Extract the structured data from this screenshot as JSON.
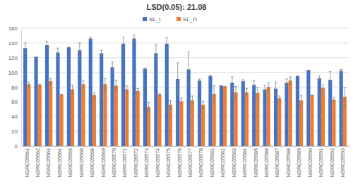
{
  "chart_data": {
    "type": "bar",
    "title": "LSD(0.05): 21.08",
    "categories": [
      "NGRC05561",
      "NGRC05562",
      "NGRC05563",
      "NGRC05564",
      "NGRC05565",
      "NGRC05566",
      "NGRC05568",
      "NGRC05569",
      "NGRC05570",
      "NGRC05571",
      "NGRC05572",
      "NGRC05573",
      "NGRC05574",
      "NGRC05575",
      "NGRC05576",
      "NGRC05577",
      "NGRC05578",
      "NGRC05581",
      "NGRC05582",
      "NGRC05583",
      "NGRC05584",
      "NGRC05585",
      "NGRC05586",
      "NGRC05587",
      "NGRC05588",
      "NGRC05589",
      "NGRC05590",
      "NGRC05591",
      "NGRC05592",
      "NGRC05593"
    ],
    "series": [
      {
        "name": "SL_I",
        "color": "#4472c4",
        "values": [
          133,
          121,
          137,
          127,
          134,
          130,
          146,
          126,
          107,
          139,
          146,
          105,
          126,
          139,
          91,
          104,
          89,
          95,
          82,
          86,
          88,
          83,
          77,
          78,
          86,
          95,
          103,
          92,
          90,
          102
        ],
        "errors": [
          7,
          0,
          5,
          6,
          0,
          10,
          2,
          4,
          7,
          9,
          5,
          1,
          12,
          8,
          22,
          24,
          2,
          1,
          0,
          8,
          2,
          6,
          5,
          9,
          5,
          0,
          0,
          3,
          11,
          2
        ]
      },
      {
        "name": "SL_D",
        "color": "#ed7d31",
        "values": [
          84,
          83,
          88,
          70,
          77,
          84,
          69,
          84,
          82,
          77,
          75,
          53,
          70,
          56,
          61,
          62,
          56,
          71,
          81,
          73,
          73,
          72,
          80,
          65,
          89,
          62,
          69,
          79,
          63,
          67
        ],
        "errors": [
          3,
          1,
          4,
          0,
          6,
          5,
          3,
          8,
          7,
          5,
          3,
          6,
          1,
          6,
          4,
          6,
          5,
          11,
          0,
          8,
          5,
          8,
          6,
          3,
          5,
          7,
          0,
          4,
          3,
          12
        ]
      }
    ],
    "ylim": [
      0,
      160
    ],
    "yticks": [
      0,
      20,
      40,
      60,
      80,
      100,
      120,
      140,
      160
    ],
    "grid": true,
    "legend": "top"
  }
}
